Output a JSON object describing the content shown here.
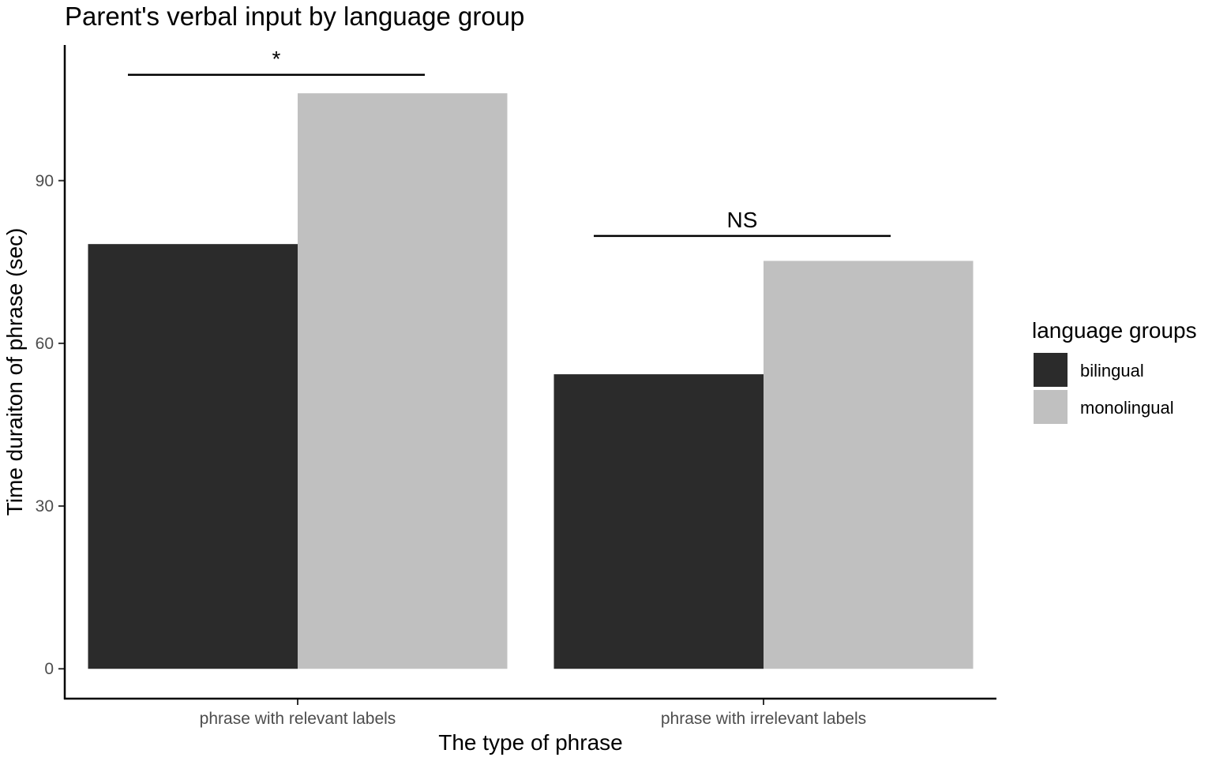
{
  "chart_data": {
    "type": "bar",
    "title": "Parent's verbal input by language group",
    "xlabel": "The type of phrase",
    "ylabel": "Time duraiton of phrase (sec)",
    "categories": [
      "phrase with relevant labels",
      "phrase with irrelevant labels"
    ],
    "series": [
      {
        "name": "bilingual",
        "values": [
          78.3,
          54.3
        ],
        "color": "#2b2b2b"
      },
      {
        "name": "monolingual",
        "values": [
          106.1,
          75.2
        ],
        "color": "#c0c0c0"
      }
    ],
    "ylim": [
      -5.5,
      115
    ],
    "yticks": [
      0,
      30,
      60,
      90
    ],
    "grid": false,
    "legend": {
      "title": "language groups",
      "placement": "right"
    },
    "annotations": [
      {
        "label": "*",
        "category_index": 0,
        "y": 109.5
      },
      {
        "label": "NS",
        "category_index": 1,
        "y": 79.8
      }
    ]
  }
}
